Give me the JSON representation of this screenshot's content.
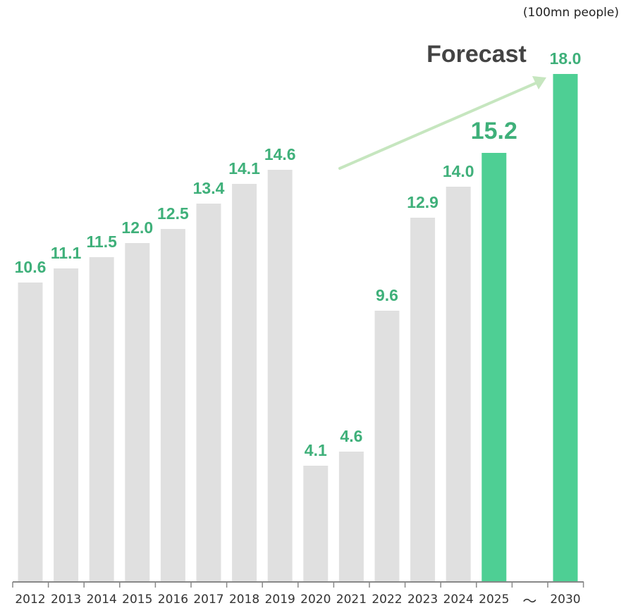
{
  "chart_data": {
    "type": "bar",
    "unit_label": "(100mn people)",
    "forecast_label": "Forecast",
    "axis_break_symbol": "～",
    "categories": [
      "2012",
      "2013",
      "2014",
      "2015",
      "2016",
      "2017",
      "2018",
      "2019",
      "2020",
      "2021",
      "2022",
      "2023",
      "2024",
      "2025",
      "2030"
    ],
    "values": [
      10.6,
      11.1,
      11.5,
      12.0,
      12.5,
      13.4,
      14.1,
      14.6,
      4.1,
      4.6,
      9.6,
      12.9,
      14.0,
      15.2,
      18.0
    ],
    "value_labels": [
      "10.6",
      "11.1",
      "11.5",
      "12.0",
      "12.5",
      "13.4",
      "14.1",
      "14.6",
      "4.1",
      "4.6",
      "9.6",
      "12.9",
      "14.0",
      "15.2",
      "18.0"
    ],
    "highlighted": [
      "2025",
      "2030"
    ],
    "ylim": [
      0,
      18.0
    ],
    "title": "",
    "xlabel": "",
    "ylabel": "",
    "grid": false,
    "colors": {
      "bar_default": "#e0e0e0",
      "bar_highlight": "#4ecf94",
      "label": "#3fb07a",
      "arrow": "#c6e6bf",
      "axis": "#888888",
      "text": "#333333"
    }
  }
}
